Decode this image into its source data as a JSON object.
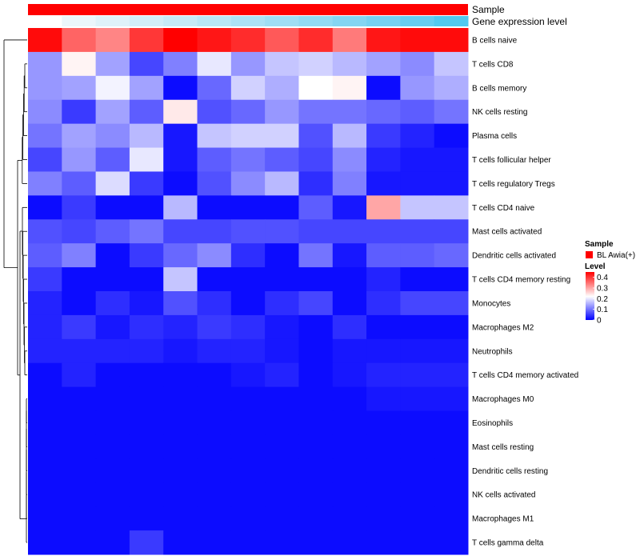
{
  "chart_data": {
    "type": "heatmap",
    "annotations": {
      "sample_label": "Sample",
      "expression_label": "Gene expression level",
      "sample_color": "#ff0000",
      "expression_colors": [
        "#ffffff",
        "#ebf6fb",
        "#dff2f9",
        "#d2eef8",
        "#c6eaf7",
        "#b9e6f6",
        "#ace2f5",
        "#9fdef4",
        "#92daf3",
        "#84d5f2",
        "#76d1f1",
        "#66cdf0",
        "#52c9ef"
      ]
    },
    "rows": [
      "B cells naive",
      "T cells CD8",
      "B cells memory",
      "NK cells resting",
      "Plasma cells",
      "T cells follicular helper",
      "T cells regulatory  Tregs",
      "T cells CD4 naive",
      "Mast cells activated",
      "Dendritic cells activated",
      "T cells CD4 memory resting",
      "Monocytes",
      "Macrophages M2",
      "Neutrophils",
      "T cells CD4 memory activated",
      "Macrophages M0",
      "Eosinophils",
      "Mast cells resting",
      "Dendritic cells resting",
      "NK cells activated",
      "Macrophages M1",
      "T cells gamma delta"
    ],
    "n_columns": 13,
    "values": [
      [
        0.44,
        0.36,
        0.33,
        0.4,
        0.45,
        0.43,
        0.41,
        0.37,
        0.41,
        0.34,
        0.43,
        0.44,
        0.44
      ],
      [
        0.13,
        0.23,
        0.14,
        0.06,
        0.11,
        0.2,
        0.13,
        0.17,
        0.18,
        0.16,
        0.14,
        0.12,
        0.17
      ],
      [
        0.13,
        0.14,
        0.21,
        0.14,
        0.01,
        0.09,
        0.18,
        0.15,
        0.22,
        0.23,
        0.01,
        0.13,
        0.15
      ],
      [
        0.12,
        0.05,
        0.14,
        0.08,
        0.24,
        0.07,
        0.09,
        0.13,
        0.1,
        0.1,
        0.09,
        0.08,
        0.1
      ],
      [
        0.1,
        0.14,
        0.12,
        0.16,
        0.02,
        0.17,
        0.18,
        0.18,
        0.07,
        0.16,
        0.05,
        0.03,
        0.01
      ],
      [
        0.06,
        0.13,
        0.08,
        0.2,
        0.02,
        0.08,
        0.1,
        0.08,
        0.06,
        0.12,
        0.03,
        0.02,
        0.02
      ],
      [
        0.11,
        0.08,
        0.19,
        0.05,
        0.01,
        0.07,
        0.12,
        0.16,
        0.04,
        0.11,
        0.02,
        0.02,
        0.02
      ],
      [
        0.01,
        0.05,
        0.01,
        0.01,
        0.16,
        0.01,
        0.01,
        0.01,
        0.08,
        0.02,
        0.3,
        0.17,
        0.17
      ],
      [
        0.07,
        0.06,
        0.08,
        0.1,
        0.06,
        0.06,
        0.07,
        0.07,
        0.06,
        0.06,
        0.06,
        0.06,
        0.06
      ],
      [
        0.08,
        0.11,
        0.01,
        0.05,
        0.09,
        0.12,
        0.04,
        0.01,
        0.1,
        0.02,
        0.08,
        0.08,
        0.09
      ],
      [
        0.05,
        0.01,
        0.01,
        0.01,
        0.17,
        0.01,
        0.01,
        0.01,
        0.01,
        0.01,
        0.03,
        0.01,
        0.01
      ],
      [
        0.03,
        0.01,
        0.04,
        0.02,
        0.07,
        0.04,
        0.01,
        0.04,
        0.06,
        0.01,
        0.04,
        0.06,
        0.06
      ],
      [
        0.03,
        0.05,
        0.02,
        0.04,
        0.03,
        0.05,
        0.04,
        0.02,
        0.01,
        0.04,
        0.01,
        0.01,
        0.01
      ],
      [
        0.03,
        0.03,
        0.03,
        0.03,
        0.02,
        0.03,
        0.03,
        0.02,
        0.01,
        0.02,
        0.02,
        0.02,
        0.02
      ],
      [
        0.01,
        0.03,
        0.01,
        0.01,
        0.01,
        0.01,
        0.02,
        0.03,
        0.01,
        0.02,
        0.03,
        0.03,
        0.03
      ],
      [
        0.01,
        0.01,
        0.01,
        0.01,
        0.01,
        0.01,
        0.01,
        0.01,
        0.01,
        0.01,
        0.02,
        0.02,
        0.02
      ],
      [
        0.01,
        0.01,
        0.01,
        0.01,
        0.01,
        0.01,
        0.01,
        0.01,
        0.01,
        0.01,
        0.01,
        0.01,
        0.01
      ],
      [
        0.01,
        0.01,
        0.01,
        0.01,
        0.01,
        0.01,
        0.01,
        0.01,
        0.01,
        0.01,
        0.01,
        0.01,
        0.01
      ],
      [
        0.01,
        0.01,
        0.01,
        0.01,
        0.01,
        0.01,
        0.01,
        0.01,
        0.01,
        0.01,
        0.01,
        0.01,
        0.01
      ],
      [
        0.01,
        0.01,
        0.01,
        0.01,
        0.01,
        0.01,
        0.01,
        0.01,
        0.01,
        0.01,
        0.01,
        0.01,
        0.01
      ],
      [
        0.01,
        0.01,
        0.01,
        0.01,
        0.01,
        0.01,
        0.01,
        0.01,
        0.01,
        0.01,
        0.01,
        0.01,
        0.01
      ],
      [
        0.01,
        0.01,
        0.01,
        0.05,
        0.01,
        0.01,
        0.01,
        0.01,
        0.01,
        0.01,
        0.01,
        0.01,
        0.01
      ]
    ],
    "color_scale": {
      "low": "#0000ff",
      "mid": "#ffffff",
      "high": "#ff0000",
      "domain": [
        0,
        0.22,
        0.45
      ]
    },
    "legend": {
      "sample_title": "Sample",
      "sample_item": "BL Awia(+)",
      "level_title": "Level",
      "level_ticks": [
        "0.4",
        "0.3",
        "0.2",
        "0.1",
        "0"
      ],
      "level_tick_values": [
        0.4,
        0.3,
        0.2,
        0.1,
        0
      ],
      "placement": "right"
    },
    "dendrogram": "rows, left"
  }
}
